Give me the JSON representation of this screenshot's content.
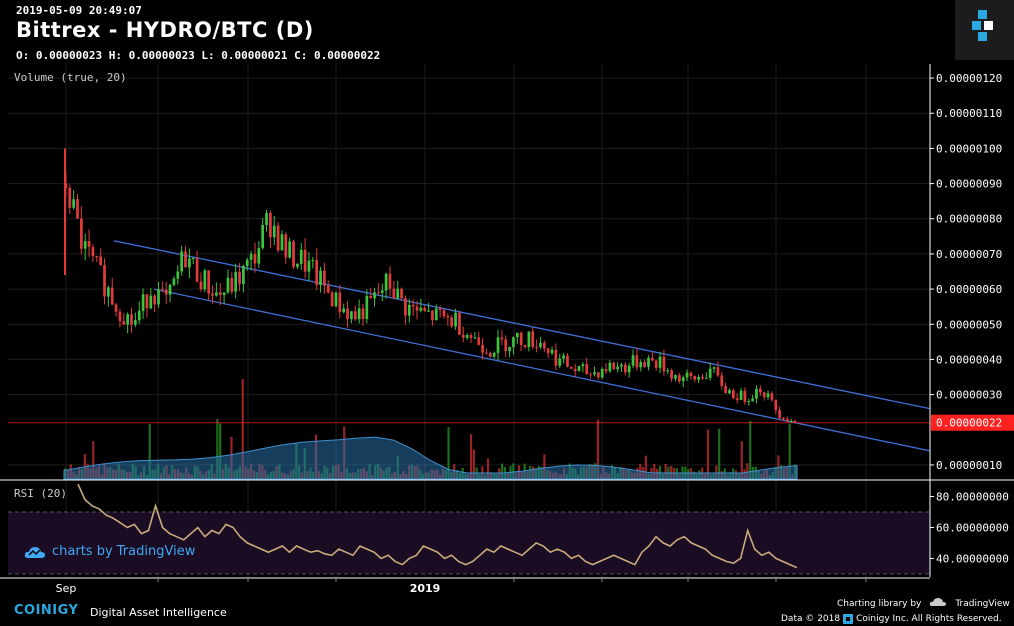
{
  "header": {
    "timestamp": "2019-05-09 20:49:07",
    "title": "Bittrex - HYDRO/BTC (D)",
    "ohlc": "O: 0.00000023 H: 0.00000023 L: 0.00000021 C: 0.00000022"
  },
  "indicators": {
    "volume_label": "Volume (true, 20)",
    "rsi_label": "RSI (20)"
  },
  "watermark": "charts by TradingView",
  "footer": {
    "brand": "COINIGY",
    "tagline": "Digital Asset Intelligence",
    "charting": "Charting library by",
    "tradingview": "TradingView",
    "data_copyright": "Data © 2018",
    "copyright_rest": "Coinigy Inc. All Rights Reserved."
  },
  "colors": {
    "up": "#26a69a",
    "up_candle": "#3cc43c",
    "down": "#e03c3c",
    "channel": "#3e6fd8",
    "rsi": "#c8aa7c",
    "volume_ma": "#2a6fa8",
    "price_line": "#ff2020",
    "brand": "#2aa8e0"
  },
  "chart_data": [
    {
      "type": "candlestick",
      "title": "Bittrex - HYDRO/BTC (D)",
      "y_axis_ticks": [
        "0.00000120",
        "0.00000110",
        "0.00000100",
        "0.00000090",
        "0.00000080",
        "0.00000070",
        "0.00000060",
        "0.00000050",
        "0.00000040",
        "0.00000030",
        "0.00000010"
      ],
      "ylim": [
        6e-08,
        1.24e-06
      ],
      "x_axis_labels": [
        "Sep",
        "2019"
      ],
      "current_price": "0.00000022",
      "series_close_approx": [
        9e-07,
        7.2e-07,
        6.4e-07,
        5.5e-07,
        5e-07,
        6e-07,
        5.6e-07,
        7e-07,
        6.3e-07,
        5.8e-07,
        6.2e-07,
        6.8e-07,
        8e-07,
        7e-07,
        6.8e-07,
        6.2e-07,
        5.6e-07,
        5.2e-07,
        5.6e-07,
        6.2e-07,
        5.5e-07,
        5.3e-07,
        5.2e-07,
        5.1e-07,
        4.6e-07,
        4.3e-07,
        4.5e-07,
        4.6e-07,
        4.5e-07,
        4e-07,
        3.7e-07,
        3.6e-07,
        3.8e-07,
        3.8e-07,
        4e-07,
        3.9e-07,
        3.5e-07,
        3.4e-07,
        3.7e-07,
        3.1e-07,
        2.9e-07,
        3.2e-07,
        2.5e-07,
        2.2e-07
      ],
      "channel_lines": {
        "upper": {
          "start": [
            0.05,
            7.6e-07
          ],
          "end": [
            1.0,
            2.6e-07
          ]
        },
        "lower": {
          "start": [
            0.05,
            6e-07
          ],
          "end": [
            1.0,
            1.4e-07
          ]
        }
      }
    },
    {
      "type": "line",
      "title": "RSI (20)",
      "y_axis_ticks": [
        "80.00000000",
        "60.00000000",
        "40.00000000"
      ],
      "ylim": [
        28,
        90
      ],
      "levels": [
        70,
        30
      ],
      "values": [
        88,
        78,
        74,
        72,
        68,
        66,
        63,
        60,
        62,
        56,
        58,
        74,
        60,
        56,
        54,
        52,
        56,
        60,
        54,
        58,
        56,
        62,
        60,
        54,
        50,
        48,
        46,
        44,
        46,
        48,
        44,
        48,
        46,
        44,
        45,
        43,
        42,
        46,
        44,
        42,
        48,
        46,
        44,
        40,
        42,
        38,
        36,
        40,
        42,
        48,
        46,
        44,
        40,
        42,
        38,
        36,
        38,
        42,
        46,
        44,
        48,
        46,
        44,
        42,
        46,
        50,
        48,
        44,
        46,
        44,
        40,
        42,
        38,
        36,
        38,
        40,
        42,
        40,
        38,
        36,
        44,
        48,
        54,
        50,
        48,
        52,
        54,
        50,
        48,
        46,
        42,
        40,
        38,
        37,
        40,
        58,
        46,
        42,
        44,
        40,
        38,
        36,
        34
      ]
    }
  ]
}
